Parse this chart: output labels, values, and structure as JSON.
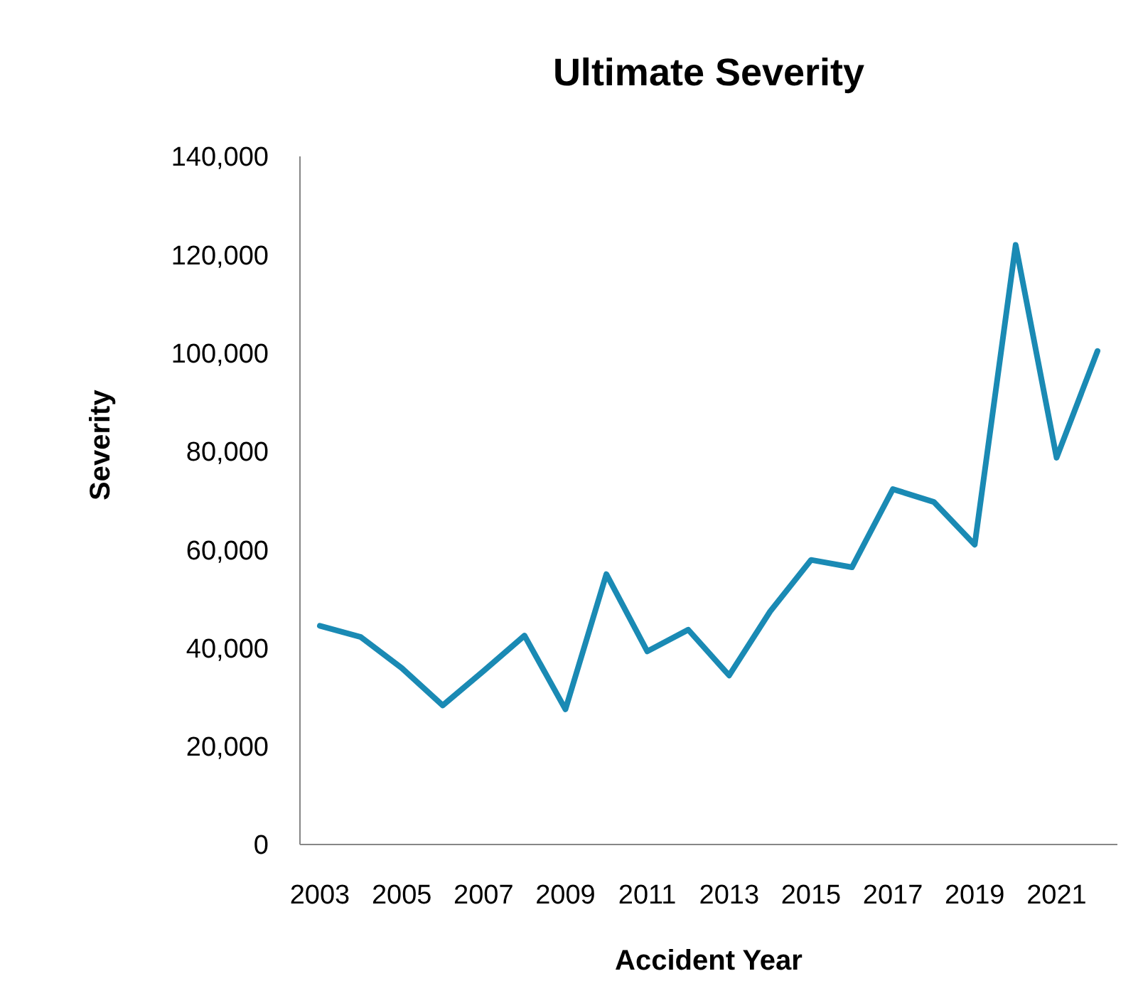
{
  "chart_data": {
    "type": "line",
    "title": "Ultimate Severity",
    "xlabel": "Accident Year",
    "ylabel": "Severity",
    "categories": [
      "2003",
      null,
      "2005",
      null,
      "2007",
      null,
      "2009",
      null,
      "2011",
      null,
      "2013",
      null,
      "2015",
      null,
      "2017",
      null,
      "2019",
      null,
      "2021",
      null
    ],
    "series": [
      {
        "color": "#1a8ab4",
        "values": [
          44500,
          42200,
          35900,
          28300,
          35300,
          42500,
          27500,
          55000,
          39300,
          43700,
          34400,
          47400,
          57900,
          56400,
          72300,
          69700,
          61000,
          122000,
          78700,
          100400
        ]
      }
    ],
    "ylim": [
      0,
      140000
    ],
    "yticks": [
      {
        "value": 0,
        "label": "0"
      },
      {
        "value": 20000,
        "label": "20,000"
      },
      {
        "value": 40000,
        "label": "40,000"
      },
      {
        "value": 60000,
        "label": "60,000"
      },
      {
        "value": 80000,
        "label": "80,000"
      },
      {
        "value": 100000,
        "label": "100,000"
      },
      {
        "value": 120000,
        "label": "120,000"
      },
      {
        "value": 140000,
        "label": "140,000"
      }
    ],
    "grid": false,
    "legend": false,
    "marker": "none",
    "line_style": "solid"
  }
}
